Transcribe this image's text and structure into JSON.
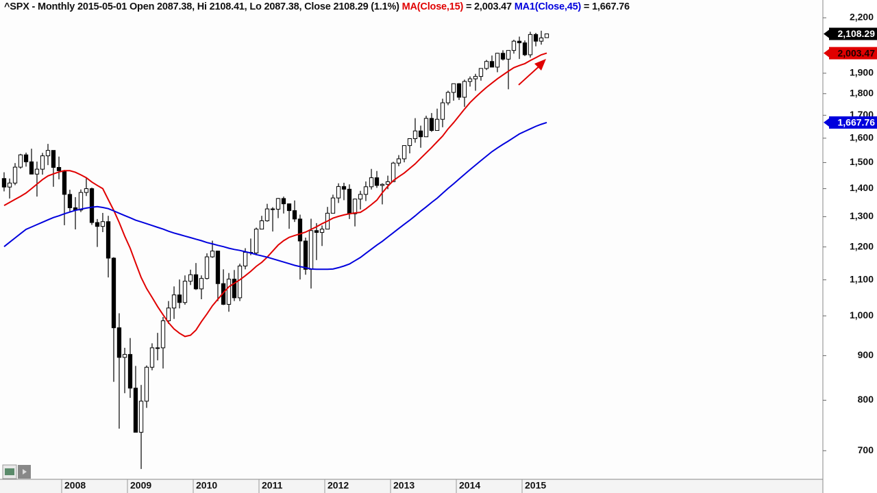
{
  "chart_data": {
    "type": "candlestick",
    "title": "^SPX - Monthly 2015-05-01 Open 2087.38, Hi 2108.41, Lo 2087.38, Close 2108.29 (1.1%)",
    "log_scale": true,
    "up_color": "#ffffff",
    "down_color": "#000000",
    "close_label": "2,108.29",
    "xlim": [
      2007.0625,
      2019.5625
    ],
    "xticks": [
      2008,
      2009,
      2010,
      2011,
      2012,
      2013,
      2014,
      2015
    ],
    "ylim": [
      649,
      2306
    ],
    "yticks": [
      700,
      800,
      900,
      {
        "value": 1000,
        "label": "1,000"
      },
      {
        "value": 1100,
        "label": "1,100"
      },
      {
        "value": 1200,
        "label": "1,200"
      },
      {
        "value": 1300,
        "label": "1,300"
      },
      {
        "value": 1400,
        "label": "1,400"
      },
      {
        "value": 1500,
        "label": "1,500"
      },
      {
        "value": 1600,
        "label": "1,600"
      },
      {
        "value": 1700,
        "label": "1,700"
      },
      {
        "value": 1800,
        "label": "1,800"
      },
      {
        "value": 1900,
        "label": "1,900"
      },
      {
        "value": 2200,
        "label": "2,200"
      }
    ],
    "x": [
      2007.083,
      2007.167,
      2007.25,
      2007.333,
      2007.417,
      2007.5,
      2007.583,
      2007.667,
      2007.75,
      2007.833,
      2007.917,
      2008,
      2008.083,
      2008.167,
      2008.25,
      2008.333,
      2008.417,
      2008.5,
      2008.583,
      2008.667,
      2008.75,
      2008.833,
      2008.917,
      2009,
      2009.083,
      2009.167,
      2009.25,
      2009.333,
      2009.417,
      2009.5,
      2009.583,
      2009.667,
      2009.75,
      2009.833,
      2009.917,
      2010,
      2010.083,
      2010.167,
      2010.25,
      2010.333,
      2010.417,
      2010.5,
      2010.583,
      2010.667,
      2010.75,
      2010.833,
      2010.917,
      2011,
      2011.083,
      2011.167,
      2011.25,
      2011.333,
      2011.417,
      2011.5,
      2011.583,
      2011.667,
      2011.75,
      2011.833,
      2011.917,
      2012,
      2012.083,
      2012.167,
      2012.25,
      2012.333,
      2012.417,
      2012.5,
      2012.583,
      2012.667,
      2012.75,
      2012.833,
      2012.917,
      2013,
      2013.083,
      2013.167,
      2013.25,
      2013.333,
      2013.417,
      2013.5,
      2013.583,
      2013.667,
      2013.75,
      2013.833,
      2013.917,
      2014,
      2014.083,
      2014.167,
      2014.25,
      2014.333,
      2014.417,
      2014.5,
      2014.583,
      2014.667,
      2014.75,
      2014.833,
      2014.917,
      2015,
      2015.083,
      2015.167,
      2015.25,
      2015.333
    ],
    "open": [
      1438,
      1406,
      1421,
      1482,
      1531,
      1503,
      1455,
      1474,
      1527,
      1549,
      1481,
      1468,
      1379,
      1331,
      1323,
      1386,
      1400,
      1280,
      1267,
      1283,
      1165,
      969,
      896,
      903,
      826,
      735,
      798,
      873,
      919,
      919,
      987,
      1021,
      1057,
      1036,
      1096,
      1115,
      1074,
      1104,
      1169,
      1187,
      1089,
      1031,
      1102,
      1049,
      1141,
      1183,
      1181,
      1258,
      1286,
      1327,
      1326,
      1364,
      1345,
      1321,
      1292,
      1219,
      1131,
      1253,
      1247,
      1258,
      1312,
      1366,
      1408,
      1398,
      1310,
      1362,
      1379,
      1407,
      1441,
      1412,
      1416,
      1426,
      1498,
      1515,
      1569,
      1598,
      1631,
      1606,
      1686,
      1633,
      1682,
      1757,
      1806,
      1848,
      1783,
      1859,
      1872,
      1884,
      1924,
      1960,
      1931,
      2003,
      1972,
      2018,
      2068,
      2059,
      1995,
      2105,
      2068,
      2087.38
    ],
    "high": [
      1462,
      1438,
      1498,
      1535,
      1540,
      1556,
      1504,
      1539,
      1576,
      1549,
      1524,
      1471,
      1396,
      1369,
      1397,
      1440,
      1404,
      1292,
      1313,
      1303,
      1168,
      1007,
      919,
      943,
      876,
      833,
      877,
      930,
      956,
      997,
      1040,
      1081,
      1101,
      1113,
      1130,
      1150,
      1113,
      1180,
      1220,
      1188,
      1131,
      1120,
      1129,
      1148,
      1196,
      1227,
      1263,
      1303,
      1345,
      1333,
      1366,
      1371,
      1346,
      1357,
      1307,
      1230,
      1293,
      1278,
      1270,
      1334,
      1378,
      1420,
      1422,
      1416,
      1364,
      1392,
      1427,
      1475,
      1467,
      1420,
      1449,
      1503,
      1530,
      1570,
      1598,
      1687,
      1654,
      1698,
      1710,
      1730,
      1776,
      1814,
      1849,
      1851,
      1868,
      1884,
      1897,
      1925,
      1968,
      1991,
      2005,
      2019,
      2019,
      2076,
      2093,
      2072,
      2120,
      2114,
      2126,
      2108.41
    ],
    "low": [
      1390,
      1364,
      1413,
      1476,
      1484,
      1454,
      1371,
      1453,
      1490,
      1407,
      1435,
      1271,
      1317,
      1257,
      1316,
      1373,
      1272,
      1200,
      1248,
      1107,
      840,
      742,
      815,
      805,
      735,
      667,
      784,
      866,
      889,
      870,
      979,
      992,
      1020,
      1030,
      1085,
      1071,
      1045,
      1101,
      1166,
      1040,
      1029,
      1011,
      1040,
      1040,
      1131,
      1174,
      1174,
      1257,
      1283,
      1250,
      1295,
      1311,
      1259,
      1282,
      1101,
      1115,
      1075,
      1159,
      1203,
      1258,
      1312,
      1348,
      1358,
      1292,
      1267,
      1325,
      1355,
      1397,
      1403,
      1343,
      1398,
      1426,
      1486,
      1501,
      1537,
      1581,
      1560,
      1605,
      1627,
      1633,
      1647,
      1746,
      1767,
      1770,
      1738,
      1834,
      1814,
      1863,
      1916,
      1930,
      1905,
      1965,
      1821,
      2001,
      1973,
      1988,
      1980,
      2040,
      2049,
      2087.38
    ],
    "close": [
      1406,
      1421,
      1482,
      1531,
      1503,
      1455,
      1474,
      1527,
      1549,
      1481,
      1468,
      1379,
      1331,
      1323,
      1386,
      1400,
      1280,
      1267,
      1283,
      1165,
      969,
      896,
      903,
      826,
      735,
      798,
      873,
      919,
      919,
      987,
      1021,
      1057,
      1036,
      1096,
      1115,
      1074,
      1104,
      1169,
      1187,
      1089,
      1031,
      1102,
      1049,
      1141,
      1183,
      1181,
      1258,
      1286,
      1327,
      1326,
      1364,
      1345,
      1321,
      1292,
      1219,
      1131,
      1253,
      1247,
      1258,
      1312,
      1366,
      1408,
      1398,
      1310,
      1362,
      1379,
      1407,
      1441,
      1412,
      1416,
      1426,
      1498,
      1515,
      1569,
      1598,
      1631,
      1606,
      1686,
      1633,
      1682,
      1757,
      1806,
      1848,
      1783,
      1859,
      1872,
      1884,
      1924,
      1960,
      1931,
      2003,
      1972,
      2018,
      2068,
      2059,
      1995,
      2105,
      2068,
      2086,
      2108.29
    ],
    "series": [
      {
        "name": "MA(Close,15)",
        "legend_text": "= 2,003.47",
        "value_label": "2,003.47",
        "color": "#e00000",
        "badge_text_color": "#1a0000",
        "values": [
          1339,
          1350,
          1361,
          1372,
          1384,
          1400,
          1417,
          1434,
          1448,
          1456,
          1463,
          1468,
          1468,
          1462,
          1452,
          1441,
          1425,
          1412,
          1400,
          1360,
          1322,
          1280,
          1235,
          1196,
          1150,
          1107,
          1075,
          1050,
          1025,
          1003,
          982,
          966,
          955,
          947,
          950,
          963,
          985,
          1005,
          1027,
          1045,
          1063,
          1080,
          1090,
          1100,
          1112,
          1125,
          1140,
          1152,
          1168,
          1187,
          1206,
          1220,
          1231,
          1237,
          1242,
          1248,
          1257,
          1266,
          1276,
          1285,
          1295,
          1301,
          1306,
          1310,
          1313,
          1315,
          1327,
          1342,
          1358,
          1385,
          1409,
          1430,
          1445,
          1459,
          1477,
          1495,
          1517,
          1539,
          1561,
          1585,
          1609,
          1640,
          1667,
          1697,
          1728,
          1758,
          1783,
          1807,
          1830,
          1851,
          1872,
          1891,
          1910,
          1928,
          1939,
          1949,
          1965,
          1980,
          1995,
          2003.47
        ]
      },
      {
        "name": "MA1(Close,45)",
        "legend_text": "= 1,667.76",
        "value_label": "1,667.76",
        "color": "#0000dd",
        "badge_text_color": "#ffffff",
        "values": [
          1201,
          1215,
          1229,
          1243,
          1257,
          1265,
          1273,
          1281,
          1289,
          1297,
          1303,
          1310,
          1316,
          1322,
          1326,
          1330,
          1333,
          1335,
          1332,
          1328,
          1320,
          1312,
          1304,
          1296,
          1288,
          1282,
          1276,
          1270,
          1264,
          1258,
          1251,
          1245,
          1240,
          1235,
          1230,
          1225,
          1220,
          1214,
          1210,
          1205,
          1201,
          1196,
          1192,
          1189,
          1185,
          1181,
          1176,
          1172,
          1168,
          1163,
          1158,
          1153,
          1148,
          1143,
          1139,
          1136,
          1132,
          1131,
          1131,
          1131,
          1132,
          1136,
          1141,
          1147,
          1157,
          1167,
          1180,
          1193,
          1206,
          1218,
          1232,
          1246,
          1260,
          1274,
          1288,
          1303,
          1319,
          1334,
          1350,
          1365,
          1383,
          1401,
          1418,
          1436,
          1454,
          1472,
          1490,
          1508,
          1526,
          1544,
          1559,
          1574,
          1588,
          1603,
          1618,
          1629,
          1640,
          1651,
          1660,
          1667.76
        ]
      }
    ]
  }
}
